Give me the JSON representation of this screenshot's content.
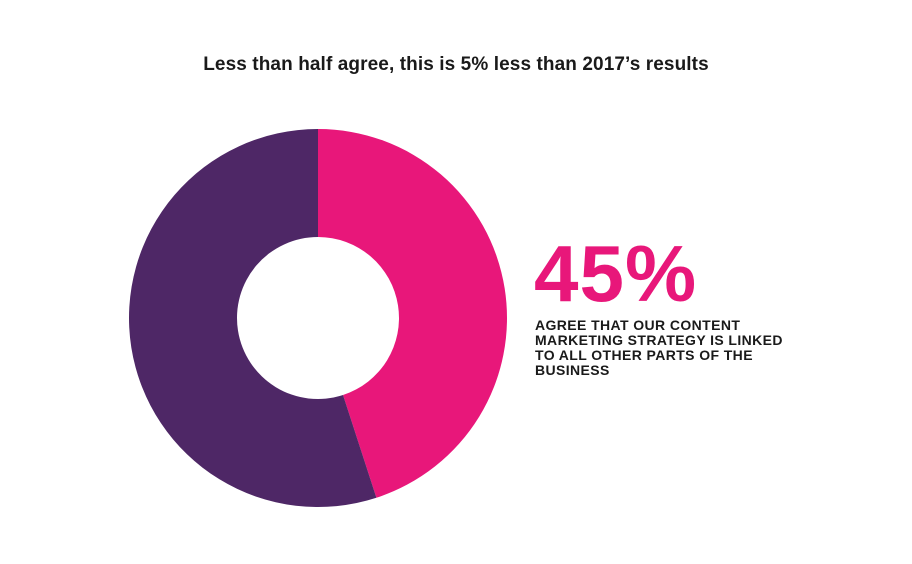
{
  "header": {
    "title": "Less than half agree, this is 5% less than 2017’s results"
  },
  "callout": {
    "value_text": "45%",
    "description": "AGREE THAT OUR CONTENT MARKETING STRATEGY IS LINKED TO ALL OTHER PARTS OF THE BUSINESS"
  },
  "colors": {
    "agree": "#e8177a",
    "other": "#4e2766",
    "value_text": "#e8177a"
  },
  "chart_data": {
    "type": "pie",
    "title": "Less than half agree, this is 5% less than 2017’s results",
    "donut": true,
    "slices": [
      {
        "label": "",
        "value": 45,
        "color": "#e8177a"
      },
      {
        "label": "",
        "value": 55,
        "color": "#4e2766"
      }
    ]
  }
}
